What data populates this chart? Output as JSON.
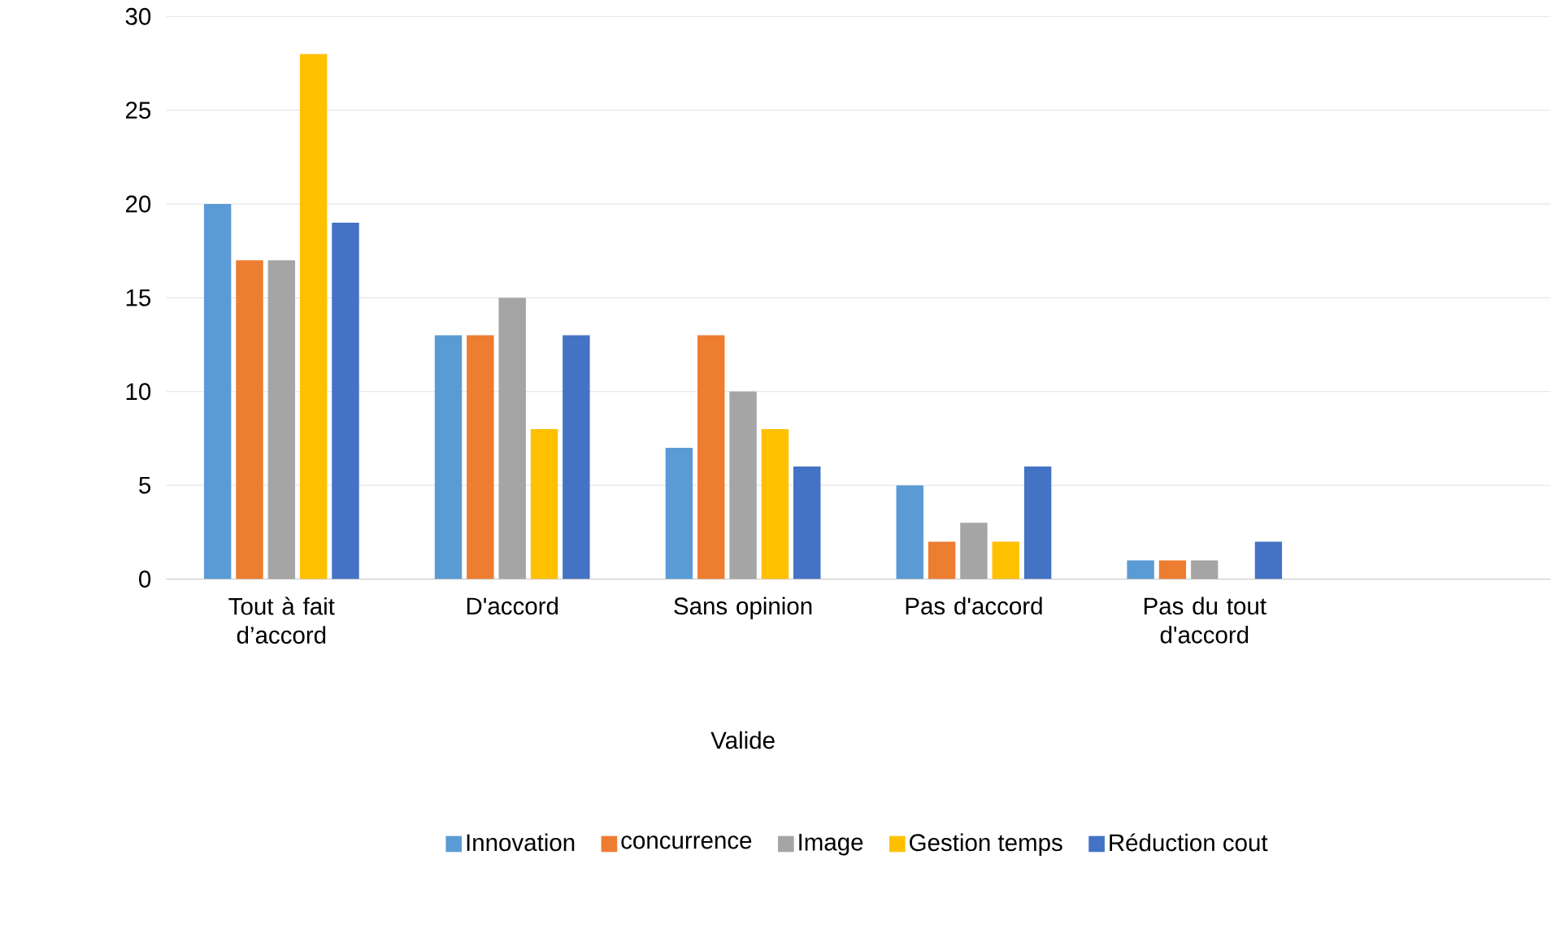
{
  "chart_data": {
    "type": "bar",
    "xlabel": "Valide",
    "categories": [
      "Tout à fait d’accord",
      "D'accord",
      "Sans opinion",
      "Pas d'accord",
      "Pas du tout d'accord",
      null
    ],
    "series": [
      {
        "name": "Innovation",
        "color": "#5b9bd5",
        "values": [
          20,
          13,
          7,
          5,
          1,
          null
        ]
      },
      {
        "name": "concurrence",
        "color": "#ed7d31",
        "values": [
          17,
          13,
          13,
          2,
          1,
          null
        ]
      },
      {
        "name": "Image",
        "color": "#a5a5a5",
        "values": [
          17,
          15,
          10,
          3,
          1,
          null
        ]
      },
      {
        "name": "Gestion temps",
        "color": "#ffc000",
        "values": [
          28,
          8,
          8,
          2,
          null,
          null
        ]
      },
      {
        "name": "Réduction cout",
        "color": "#4472c4",
        "values": [
          19,
          13,
          6,
          6,
          2,
          null
        ]
      }
    ],
    "ylim": [
      0,
      30
    ],
    "yticks": [
      0,
      5,
      10,
      15,
      20,
      25,
      30
    ],
    "grid": "y",
    "legend": "bottom"
  }
}
